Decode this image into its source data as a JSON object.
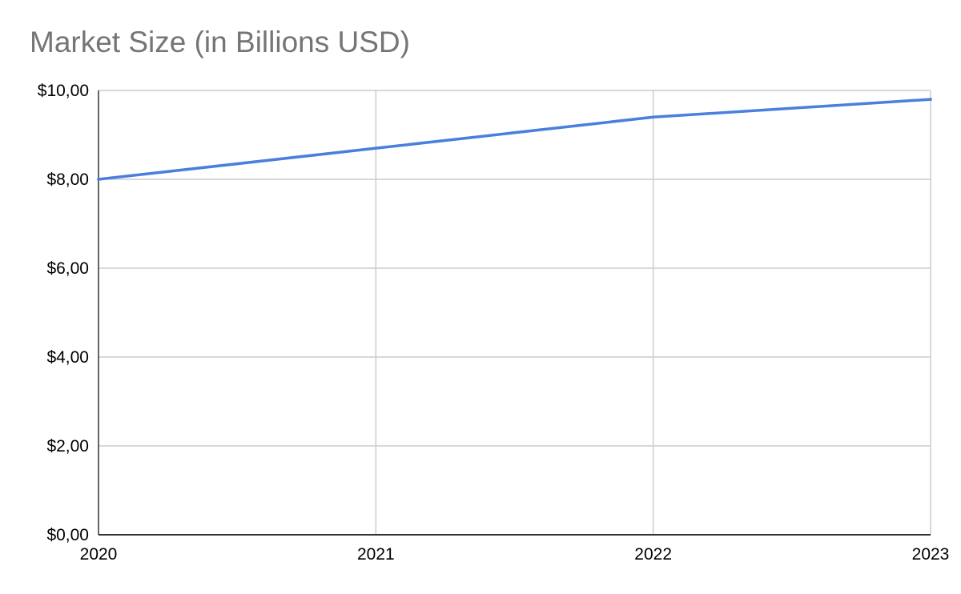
{
  "chart_data": {
    "type": "line",
    "title": "Market Size (in Billions USD)",
    "xlabel": "",
    "ylabel": "",
    "categories": [
      "2020",
      "2021",
      "2022",
      "2023"
    ],
    "series": [
      {
        "values": [
          8.0,
          8.7,
          9.4,
          9.8
        ],
        "color": "#4a7fde"
      }
    ],
    "ylim": [
      0,
      10
    ],
    "y_ticks": [
      0,
      2,
      4,
      6,
      8,
      10
    ],
    "y_tick_labels": [
      "$0,00",
      "$2,00",
      "$4,00",
      "$6,00",
      "$8,00",
      "$10,00"
    ],
    "grid": true,
    "legend": "none",
    "gridline_color": "#cccccc",
    "axis_color": "#333333"
  }
}
